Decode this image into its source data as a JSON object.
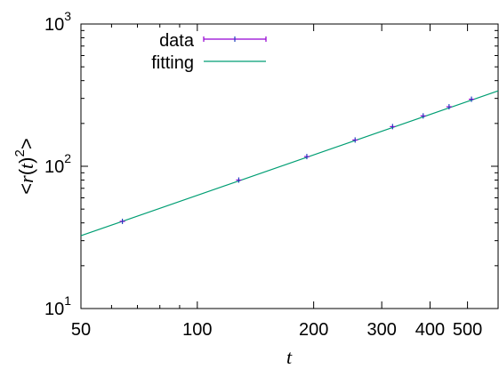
{
  "chart_data": {
    "type": "scatter",
    "title": "",
    "xlabel": "t",
    "ylabel_parts": {
      "open": "<",
      "func": "r",
      "paren_open": "(",
      "var": "t",
      "paren_close": ")",
      "sup": "2",
      "close": ">"
    },
    "x_scale": "log",
    "y_scale": "log",
    "xlim": [
      50,
      600
    ],
    "ylim": [
      10,
      1000
    ],
    "grid": false,
    "legend_position": "top-left",
    "x_ticks": [
      {
        "value": 50,
        "label": "50"
      },
      {
        "value": 100,
        "label": "100"
      },
      {
        "value": 200,
        "label": "200"
      },
      {
        "value": 300,
        "label": "300"
      },
      {
        "value": 400,
        "label": "400"
      },
      {
        "value": 500,
        "label": "500"
      }
    ],
    "y_ticks": [
      {
        "value": 10,
        "base": "10",
        "exp": "1"
      },
      {
        "value": 100,
        "base": "10",
        "exp": "2"
      },
      {
        "value": 1000,
        "base": "10",
        "exp": "3"
      }
    ],
    "series": [
      {
        "name": "data",
        "kind": "points-with-errorbars",
        "color": "#9400d3",
        "x": [
          64,
          128,
          192,
          256,
          320,
          384,
          448,
          512
        ],
        "y": [
          41,
          80,
          117,
          153,
          190,
          226,
          262,
          296
        ]
      },
      {
        "name": "fitting",
        "kind": "line",
        "color": "#009e73",
        "x": [
          50,
          600
        ],
        "y": [
          32.5,
          339
        ]
      }
    ]
  }
}
